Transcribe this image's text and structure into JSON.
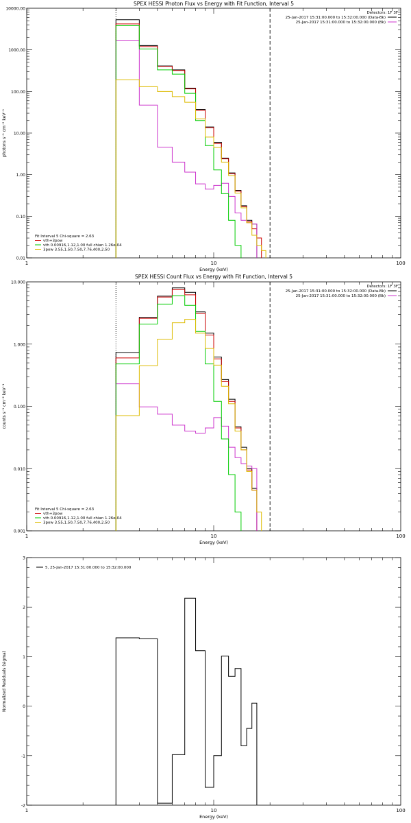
{
  "chart_data": [
    {
      "type": "line",
      "title": "SPEX HESSI Photon Flux vs Energy with Fit Function, Interval 5",
      "xlabel": "Energy (keV)",
      "ylabel": "photons s⁻¹ cm⁻² keV⁻¹",
      "xscale": "log",
      "yscale": "log",
      "xlim": [
        1,
        100
      ],
      "ylim": [
        0.01,
        10000
      ],
      "x_ticks": [
        "1",
        "10",
        "100"
      ],
      "y_ticks": [
        "0.01",
        "0.10",
        "1.00",
        "10.00",
        "100.00",
        "1000.00",
        "10000.00"
      ],
      "vlines": [
        {
          "x": 3.0,
          "style": "dotted"
        },
        {
          "x": 20.0,
          "style": "dashed"
        }
      ],
      "legend_top": [
        {
          "text": "Detectors: 1F 3F",
          "color": "#000000"
        },
        {
          "text": "25-Jan-2017 15:31:00.000 to 15:32:00.000 (Data-Bk)",
          "color": "#000000"
        },
        {
          "text": "25-Jan-2017 15:31:00.000 to 15:32:00.000 (Bk)",
          "color": "#cc33cc"
        }
      ],
      "legend_bottom": [
        {
          "text": "Fit Interval 5   Chi-square = 2.63",
          "color": "#000000"
        },
        {
          "text": "vth+3pow",
          "color": "#cc0000"
        },
        {
          "text": "vth 0.00916,1.12,1.00  full chian 1.26e-04",
          "color": "#00cc00"
        },
        {
          "text": "3pow 3.55,1.50,7.50,7.76,400,2.50",
          "color": "#ddbb00"
        }
      ],
      "bin_edges": [
        3.0,
        4.0,
        5.0,
        6.0,
        7.0,
        8.0,
        9.0,
        10.0,
        11.0,
        12.0,
        13.0,
        14.0,
        15.0,
        16.0,
        17.0,
        18.0,
        19.0,
        20.0,
        21.0,
        22.0
      ],
      "series": [
        {
          "color": "#000000",
          "values": [
            5300,
            1270,
            410,
            330,
            120,
            37,
            14,
            6.0,
            2.5,
            1.1,
            0.42,
            0.18,
            0.08,
            0.065
          ]
        },
        {
          "name": "vth+3pow",
          "color": "#cc0000",
          "values": [
            4200,
            1200,
            400,
            320,
            115,
            35,
            13.5,
            5.6,
            2.4,
            1.05,
            0.4,
            0.17,
            0.075,
            0.05,
            0.03
          ]
        },
        {
          "color": "#cc33cc",
          "values": [
            1650,
            47,
            4.6,
            2.0,
            1.15,
            0.6,
            0.45,
            0.55,
            0.62,
            0.3,
            0.12,
            0.08,
            0.07,
            0.065
          ]
        },
        {
          "color": "#00cc00",
          "values": [
            3800,
            1050,
            330,
            260,
            90,
            20,
            5.0,
            1.3,
            0.35,
            0.08,
            0.02
          ]
        },
        {
          "color": "#ddbb00",
          "values": [
            190,
            130,
            100,
            75,
            55,
            22,
            8.0,
            4.5,
            2.0,
            0.95,
            0.36,
            0.16,
            0.07,
            0.035,
            0.02,
            0.015
          ]
        }
      ]
    },
    {
      "type": "line",
      "title": "SPEX HESSI Count Flux vs Energy with Fit Function, Interval 5",
      "xlabel": "Energy (keV)",
      "ylabel": "counts s⁻¹ cm⁻² keV⁻¹",
      "xscale": "log",
      "yscale": "log",
      "xlim": [
        1,
        100
      ],
      "ylim": [
        0.001,
        10
      ],
      "x_ticks": [
        "1",
        "10",
        "100"
      ],
      "y_ticks": [
        "0.001",
        "0.010",
        "0.100",
        "1.000",
        "10.000"
      ],
      "vlines": [
        {
          "x": 3.0,
          "style": "dotted"
        },
        {
          "x": 20.0,
          "style": "dashed"
        }
      ],
      "legend_top": [
        {
          "text": "Detectors: 1F 3F",
          "color": "#000000"
        },
        {
          "text": "25-Jan-2017 15:31:00.000 to 15:32:00.000 (Data-Bk)",
          "color": "#000000"
        },
        {
          "text": "25-Jan-2017 15:31:00.000 to 15:32:00.000 (Bk)",
          "color": "#cc33cc"
        }
      ],
      "legend_bottom": [
        {
          "text": "Fit Interval 5   Chi-square = 2.63",
          "color": "#000000"
        },
        {
          "text": "vth+3pow",
          "color": "#cc0000"
        },
        {
          "text": "vth 0.00916,1.12,1.00  full chian 1.26e-04",
          "color": "#00cc00"
        },
        {
          "text": "3pow 3.55,1.50,7.50,7.76,400,2.50",
          "color": "#ddbb00"
        }
      ],
      "bin_edges": [
        3.0,
        4.0,
        5.0,
        6.0,
        7.0,
        8.0,
        9.0,
        10.0,
        11.0,
        12.0,
        13.0,
        14.0,
        15.0,
        16.0,
        17.0,
        18.0,
        19.0,
        20.0,
        21.0,
        22.0
      ],
      "series": [
        {
          "color": "#000000",
          "values": [
            0.73,
            2.7,
            5.9,
            8.0,
            6.8,
            3.3,
            1.5,
            0.62,
            0.27,
            0.13,
            0.047,
            0.022,
            0.01,
            0.0048
          ]
        },
        {
          "name": "vth+3pow",
          "color": "#cc0000",
          "values": [
            0.6,
            2.6,
            5.7,
            7.5,
            6.2,
            3.1,
            1.4,
            0.58,
            0.25,
            0.12,
            0.045,
            0.02,
            0.0095,
            0.0045
          ]
        },
        {
          "color": "#cc33cc",
          "values": [
            0.23,
            0.098,
            0.075,
            0.05,
            0.04,
            0.037,
            0.045,
            0.066,
            0.048,
            0.022,
            0.015,
            0.012,
            0.011,
            0.01
          ]
        },
        {
          "color": "#00cc00",
          "values": [
            0.48,
            2.1,
            4.4,
            6.0,
            4.2,
            1.6,
            0.48,
            0.12,
            0.03,
            0.008,
            0.002
          ]
        },
        {
          "color": "#ddbb00",
          "values": [
            0.071,
            0.45,
            1.2,
            2.2,
            2.5,
            1.5,
            0.85,
            0.46,
            0.21,
            0.11,
            0.04,
            0.02,
            0.009,
            0.0045,
            0.002
          ]
        }
      ]
    },
    {
      "type": "line",
      "title": "",
      "xlabel": "Energy (keV)",
      "ylabel": "Normalized Residuals (sigma)",
      "xscale": "log",
      "yscale": "linear",
      "xlim": [
        1,
        100
      ],
      "ylim": [
        -2,
        3
      ],
      "x_ticks": [
        "1",
        "10",
        "100"
      ],
      "y_ticks": [
        "-2",
        "-1",
        "0",
        "1",
        "2",
        "3"
      ],
      "legend_top": [
        {
          "text": "5, 25-Jan-2017 15:31:00.000 to 15:32:00.000",
          "color": "#000000"
        }
      ],
      "bin_edges": [
        3.0,
        4.0,
        5.0,
        6.0,
        7.0,
        8.0,
        9.0,
        10.0,
        11.0,
        12.0,
        13.0,
        14.0,
        15.0,
        16.0,
        17.0,
        18.0,
        19.0,
        20.0
      ],
      "series": [
        {
          "color": "#000000",
          "values": [
            1.38,
            1.36,
            -1.96,
            -0.98,
            2.18,
            1.12,
            -1.64,
            -1.0,
            1.01,
            0.6,
            0.76,
            -0.8,
            -0.45,
            0.06
          ]
        }
      ]
    }
  ]
}
